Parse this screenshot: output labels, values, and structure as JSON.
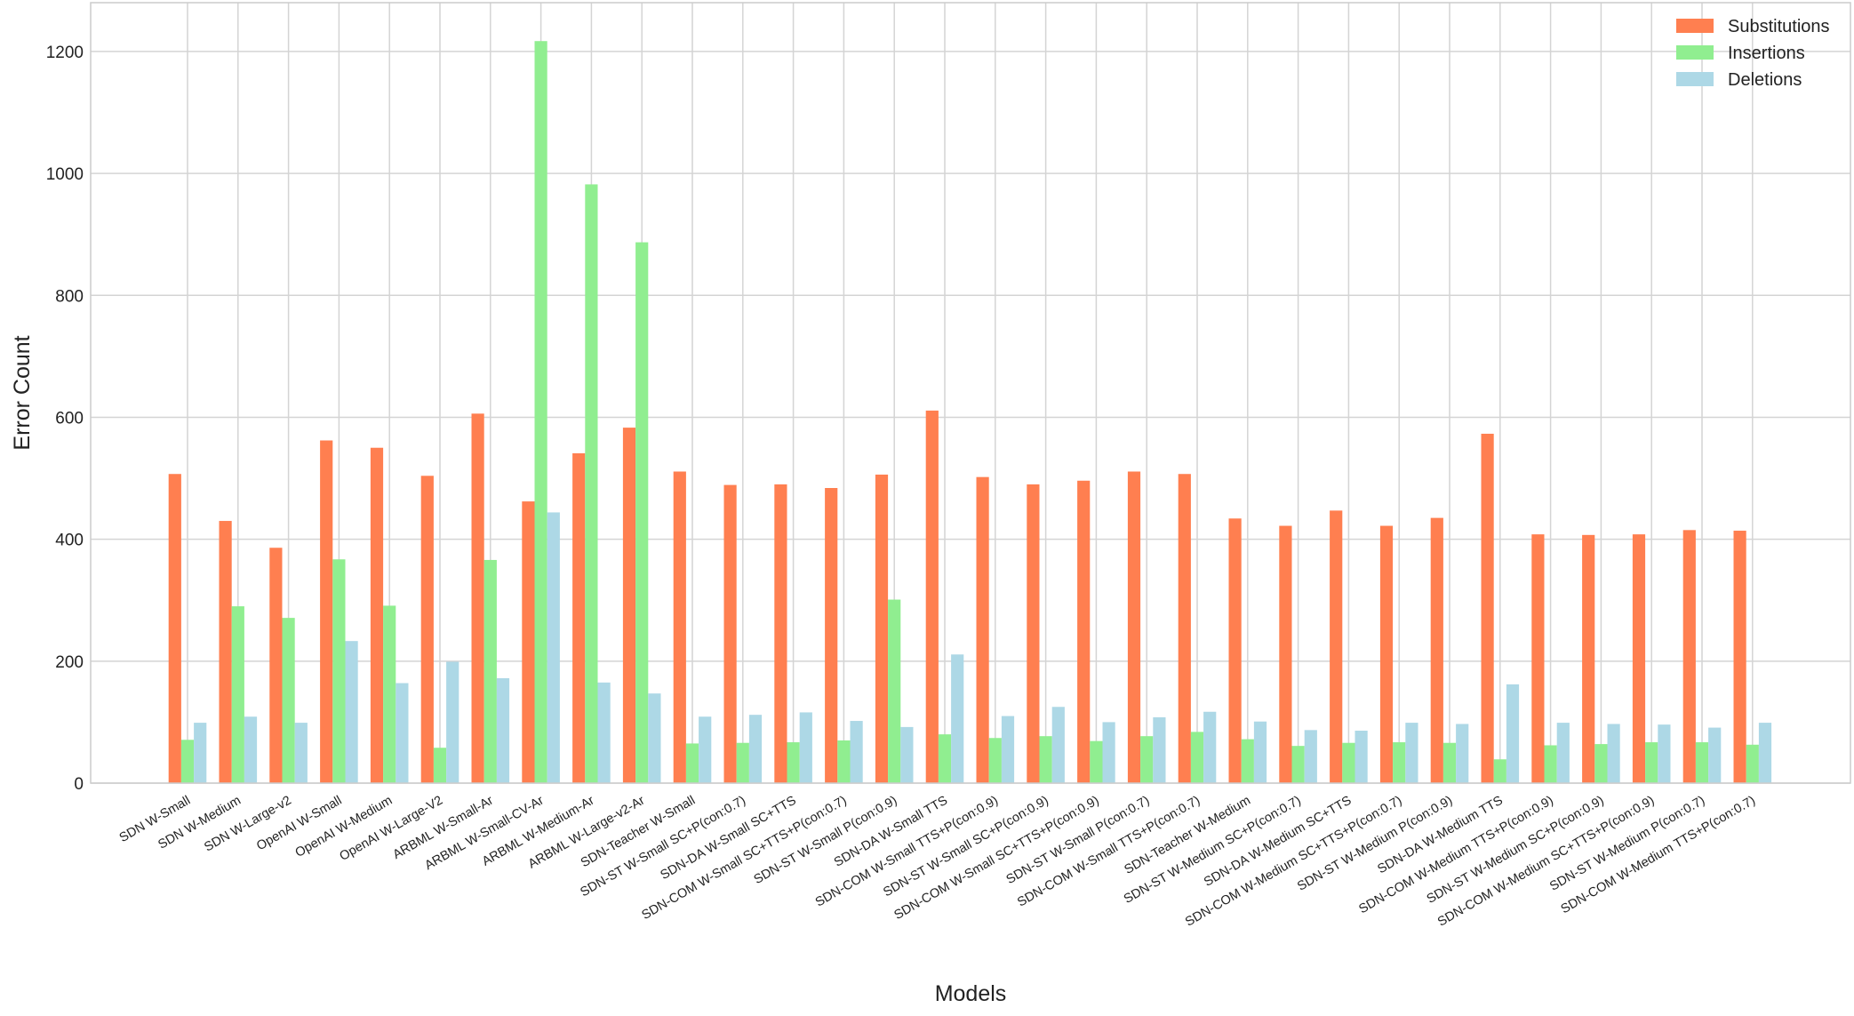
{
  "chart_data": {
    "type": "bar",
    "xlabel": "Models",
    "ylabel": "Error Count",
    "ylim": [
      0,
      1280
    ],
    "yticks": [
      0,
      200,
      400,
      600,
      800,
      1000,
      1200
    ],
    "grid": true,
    "legend_position": "top-right",
    "categories": [
      "SDN W-Small",
      "SDN W-Medium",
      "SDN W-Large-v2",
      "OpenAI W-Small",
      "OpenAI W-Medium",
      "OpenAI W-Large-V2",
      "ARBML W-Small-Ar",
      "ARBML W-Small-CV-Ar",
      "ARBML W-Medium-Ar",
      "ARBML W-Large-v2-Ar",
      "SDN-Teacher W-Small",
      "SDN-ST W-Small SC+P(con:0.7)",
      "SDN-DA W-Small SC+TTS",
      "SDN-COM W-Small SC+TTS+P(con:0.7)",
      "SDN-ST W-Small P(con:0.9)",
      "SDN-DA W-Small TTS",
      "SDN-COM W-Small TTS+P(con:0.9)",
      "SDN-ST W-Small SC+P(con:0.9)",
      "SDN-COM W-Small SC+TTS+P(con:0.9)",
      "SDN-ST W-Small P(con:0.7)",
      "SDN-COM W-Small TTS+P(con:0.7)",
      "SDN-Teacher W-Medium",
      "SDN-ST W-Medium SC+P(con:0.7)",
      "SDN-DA W-Medium SC+TTS",
      "SDN-COM W-Medium SC+TTS+P(con:0.7)",
      "SDN-ST W-Medium P(con:0.9)",
      "SDN-DA W-Medium TTS",
      "SDN-COM W-Medium TTS+P(con:0.9)",
      "SDN-ST W-Medium SC+P(con:0.9)",
      "SDN-COM W-Medium SC+TTS+P(con:0.9)",
      "SDN-ST W-Medium P(con:0.7)",
      "SDN-COM W-Medium TTS+P(con:0.7)"
    ],
    "series": [
      {
        "name": "Substitutions",
        "color": "#ff7f50",
        "values": [
          507,
          430,
          386,
          562,
          550,
          504,
          606,
          462,
          541,
          583,
          511,
          489,
          490,
          484,
          506,
          611,
          502,
          490,
          496,
          511,
          507,
          434,
          422,
          447,
          422,
          435,
          573,
          408,
          407,
          408,
          415,
          414
        ]
      },
      {
        "name": "Insertions",
        "color": "#90ee90",
        "values": [
          71,
          290,
          271,
          367,
          291,
          58,
          366,
          1217,
          982,
          887,
          65,
          66,
          67,
          70,
          301,
          80,
          74,
          77,
          69,
          77,
          84,
          72,
          61,
          66,
          67,
          66,
          39,
          62,
          64,
          67,
          67,
          63
        ]
      },
      {
        "name": "Deletions",
        "color": "#add8e6",
        "values": [
          99,
          109,
          99,
          233,
          164,
          199,
          172,
          444,
          165,
          147,
          109,
          112,
          116,
          102,
          92,
          211,
          110,
          125,
          100,
          108,
          117,
          101,
          87,
          86,
          99,
          97,
          162,
          99,
          97,
          96,
          91,
          99
        ]
      }
    ]
  }
}
